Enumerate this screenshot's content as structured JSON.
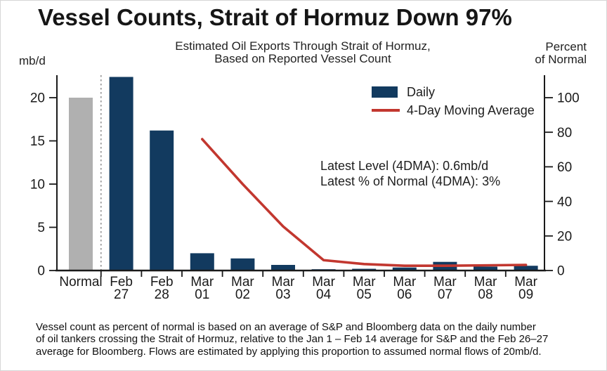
{
  "title": "Vessel Counts, Strait of Hormuz Down 97%",
  "header": {
    "left_unit": "mb/d",
    "subtitle_lines": [
      "Estimated Oil Exports Through Strait of Hormuz,",
      "Based on Reported Vessel Count"
    ],
    "right_unit_lines": [
      "Percent",
      "of Normal"
    ]
  },
  "legend": {
    "items": [
      {
        "label": "Daily",
        "swatch": "bar"
      },
      {
        "label": "4-Day Moving Average",
        "swatch": "line"
      }
    ]
  },
  "annotation": {
    "lines": [
      "Latest Level (4DMA): 0.6mb/d",
      "Latest % of Normal (4DMA): 3%"
    ]
  },
  "footnote": {
    "lines": [
      "Vessel count as percent of normal is based on an average of S&P and Bloomberg data on the daily number",
      "of oil tankers crossing the Strait of Hormuz, relative to the Jan 1 – Feb 14 average for S&P and the Feb 26–27",
      "average for Bloomberg. Flows are estimated by applying this proportion to assumed normal flows of 20mb/d."
    ]
  },
  "colors": {
    "bar_daily": "#123a5f",
    "bar_normal": "#b0b0b0",
    "ma_line": "#c2372f",
    "axis": "#1a1a1a",
    "separator": "#8c8c8c",
    "text": "#1a1a1a"
  },
  "chart_data": {
    "type": "bar",
    "title": "Estimated Oil Exports Through Strait of Hormuz, Based on Reported Vessel Count",
    "categories": [
      "Normal",
      "Feb 27",
      "Feb 28",
      "Mar 01",
      "Mar 02",
      "Mar 03",
      "Mar 04",
      "Mar 05",
      "Mar 06",
      "Mar 07",
      "Mar 08",
      "Mar 09"
    ],
    "category_label_lines": [
      [
        "Normal"
      ],
      [
        "Feb",
        "27"
      ],
      [
        "Feb",
        "28"
      ],
      [
        "Mar",
        "01"
      ],
      [
        "Mar",
        "02"
      ],
      [
        "Mar",
        "03"
      ],
      [
        "Mar",
        "04"
      ],
      [
        "Mar",
        "05"
      ],
      [
        "Mar",
        "06"
      ],
      [
        "Mar",
        "07"
      ],
      [
        "Mar",
        "08"
      ],
      [
        "Mar",
        "09"
      ]
    ],
    "series": [
      {
        "name": "Daily",
        "type": "bar",
        "values": [
          20,
          22.4,
          16.2,
          2.0,
          1.4,
          0.65,
          0.15,
          0.2,
          0.35,
          1.0,
          0.45,
          0.55
        ],
        "note": "First bar is the gray Normal benchmark; remaining bars are daily estimates in navy"
      },
      {
        "name": "4-Day Moving Average",
        "type": "line",
        "values": [
          null,
          null,
          null,
          15.2,
          10.0,
          5.1,
          1.2,
          0.75,
          0.55,
          0.55,
          0.6,
          0.65
        ]
      }
    ],
    "left_axis": {
      "unit": "mb/d",
      "ticks": [
        0,
        5,
        10,
        15,
        20
      ],
      "range": [
        0,
        22.6
      ]
    },
    "right_axis": {
      "unit": "Percent of Normal",
      "ticks": [
        0,
        20,
        40,
        60,
        80,
        100
      ],
      "range": [
        0,
        113
      ]
    },
    "separator_after_index": 0,
    "grid": false,
    "legend_position": "inside-upper-right",
    "annotations": [
      "Latest Level (4DMA): 0.6mb/d",
      "Latest % of Normal (4DMA): 3%"
    ]
  }
}
